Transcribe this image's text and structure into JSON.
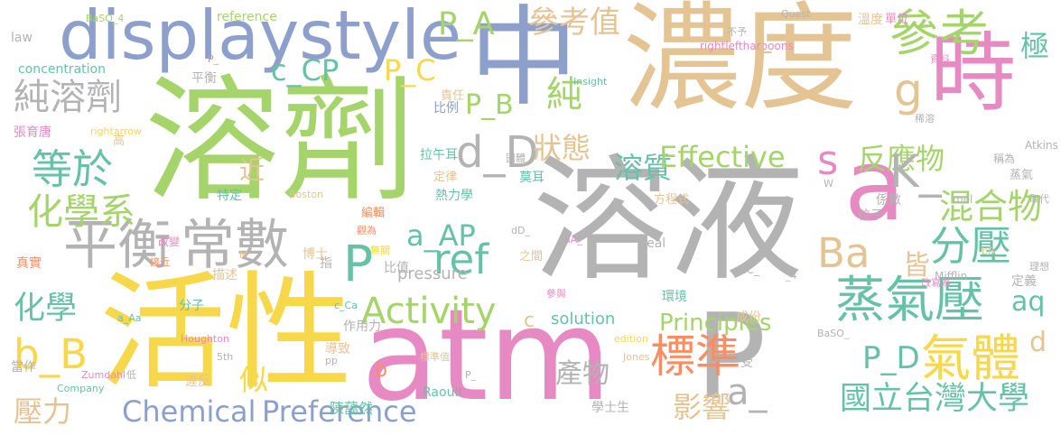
{
  "colors": {
    "background": "#ffffff",
    "yellow": "#f7d84a",
    "green": "#a5d46a",
    "blue": "#8da0cb",
    "tan": "#e5c494",
    "pink": "#e78ac3",
    "gray": "#b3b3b3",
    "lightgreen": "#a6d854",
    "orange": "#fc8d62",
    "teal": "#66c2a5"
  },
  "words": [
    "溶劑",
    "溶液",
    "濃度",
    "活性",
    "atm",
    "中",
    "P",
    "a",
    "時",
    "displaystyle",
    "平衡",
    "常數",
    "參考",
    "蒸氣壓",
    "氣體",
    "標準",
    "Activity",
    "純溶劑",
    "等於",
    "化學系",
    "ref",
    "分壓",
    "混合物",
    "國立台灣大學",
    "Ba",
    "反應物",
    "d_D",
    "K_",
    "s",
    "g",
    "P_A",
    "參考值",
    "溶質",
    "狀態",
    "Effective",
    "Chemical",
    "Preference",
    "c_CP",
    "P_C",
    "P_B",
    "a_AP",
    "b_B",
    "化學",
    "壓力",
    "影響",
    "產物",
    "a_",
    "P_D",
    "aq",
    "Principles",
    "純",
    "皆",
    "P",
    "極",
    "d",
    "c",
    "b",
    "似",
    "近",
    "solution",
    "pressure",
    "BaSO_4",
    "reference",
    "law",
    "concentration",
    "Quest",
    "rightleftharpoons",
    "Insight",
    "溫度",
    "單位",
    "張育唐",
    "rightarrow",
    "平衡",
    "高",
    "責任",
    "比例",
    "L",
    "稱為",
    "蒸氣",
    "Atkins",
    "定律",
    "拉午耳",
    "莫耳",
    "熱力學",
    "方程式",
    "係數",
    "粒子",
    "特定",
    "Boston",
    "編輯",
    "博士",
    "指",
    "比值",
    "Real",
    "作用力",
    "分子",
    "描述",
    "導致",
    "成份",
    "環境",
    "5th",
    "Houghton",
    "Zumdahl",
    "當作",
    "違反",
    "低",
    "Company",
    "Raoult",
    "陳藹然",
    "學士生",
    "Jones",
    "Mifflin",
    "定義",
    "理想",
    "受",
    "取代",
    "資料",
    "mol",
    "改變",
    "接近",
    "真實",
    "之間",
    "無關",
    "不予",
    "改寫為",
    "edition",
    "參與",
    "標準值",
    "pp",
    "國體",
    "aA_",
    "dD_",
    "bB_",
    "cC_",
    "a_Aa",
    "c_Ca",
    "P_",
    "W",
    "M",
    "_4",
    "BaSO_",
    "觀為",
    "稀溶",
    "P_"
  ]
}
